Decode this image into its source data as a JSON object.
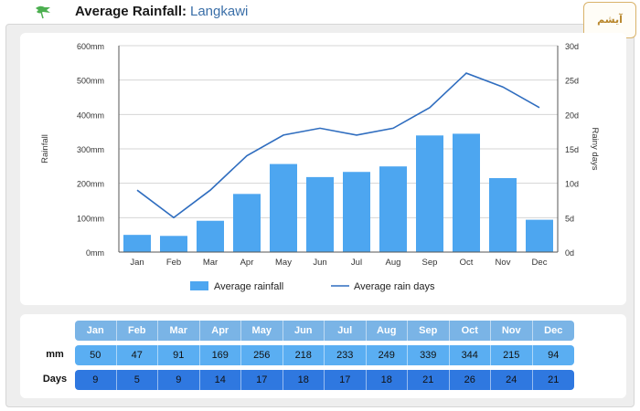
{
  "header": {
    "title": "Average Rainfall:",
    "location": "Langkawi",
    "badge_text": "آیشم"
  },
  "colors": {
    "bar": "#4da6f0",
    "line": "#2f6dbf",
    "table_head": "#7ab4e6",
    "table_mm": "#5aaef2",
    "table_days": "#2f78e0"
  },
  "chart_data": {
    "type": "bar",
    "categories": [
      "Jan",
      "Feb",
      "Mar",
      "Apr",
      "May",
      "Jun",
      "Jul",
      "Aug",
      "Sep",
      "Oct",
      "Nov",
      "Dec"
    ],
    "series": [
      {
        "name": "Average rainfall",
        "type": "bar",
        "axis": "left",
        "values": [
          50,
          47,
          91,
          169,
          256,
          218,
          233,
          249,
          339,
          344,
          215,
          94
        ]
      },
      {
        "name": "Average rain days",
        "type": "line",
        "axis": "right",
        "values": [
          9,
          5,
          9,
          14,
          17,
          18,
          17,
          18,
          21,
          26,
          24,
          21
        ]
      }
    ],
    "ylabel": "Rainfall",
    "y2label": "Rainy days",
    "ylim": [
      0,
      600
    ],
    "y2lim": [
      0,
      30
    ],
    "yticks": [
      "0mm",
      "100mm",
      "200mm",
      "300mm",
      "400mm",
      "500mm",
      "600mm"
    ],
    "y2ticks": [
      "0d",
      "5d",
      "10d",
      "15d",
      "20d",
      "25d",
      "30d"
    ],
    "legend": [
      "Average rainfall",
      "Average rain days"
    ],
    "legend_position": "bottom-center",
    "grid": true
  },
  "table": {
    "months": [
      "Jan",
      "Feb",
      "Mar",
      "Apr",
      "May",
      "Jun",
      "Jul",
      "Aug",
      "Sep",
      "Oct",
      "Nov",
      "Dec"
    ],
    "mm_label": "mm",
    "days_label": "Days",
    "mm": [
      "50",
      "47",
      "91",
      "169",
      "256",
      "218",
      "233",
      "249",
      "339",
      "344",
      "215",
      "94"
    ],
    "days": [
      "9",
      "5",
      "9",
      "14",
      "17",
      "18",
      "17",
      "18",
      "21",
      "26",
      "24",
      "21"
    ]
  }
}
